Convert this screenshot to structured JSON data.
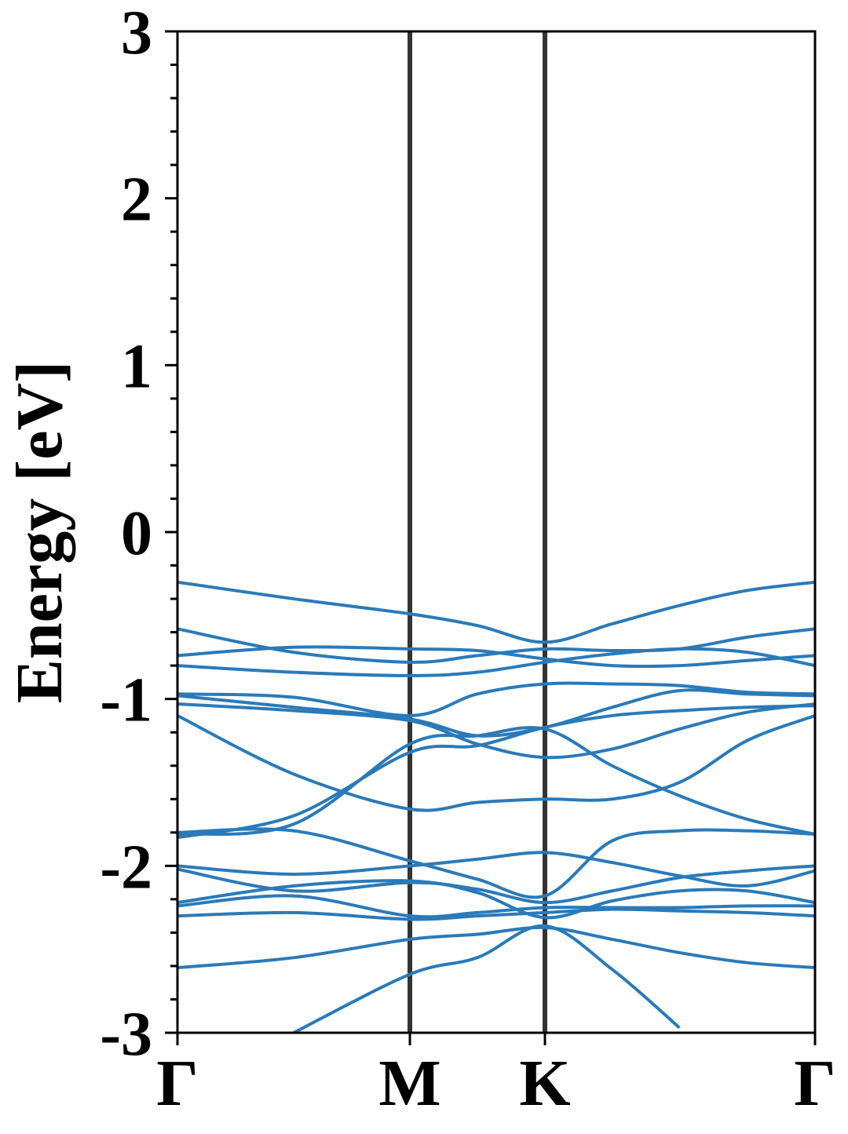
{
  "chart_data": {
    "type": "line",
    "y_label": "Energy [eV]",
    "color": "#2a7ab9",
    "kpoint_lines": true,
    "x": [
      0,
      0.5,
      1,
      1.29,
      1.581,
      1.87,
      2.16,
      2.45,
      2.743
    ],
    "xlim": [
      0,
      2.743
    ],
    "xticks": [
      {
        "value": 0,
        "label": "Γ"
      },
      {
        "value": 1,
        "label": "M"
      },
      {
        "value": 1.581,
        "label": "K"
      },
      {
        "value": 2.743,
        "label": "Γ"
      }
    ],
    "ylim": [
      -3,
      3
    ],
    "yticks": [
      -3,
      -2,
      -1,
      0,
      1,
      2,
      3
    ],
    "yminorticks": [
      -2.8,
      -2.6,
      -2.4,
      -2.2,
      -1.8,
      -1.6,
      -1.4,
      -1.2,
      -0.8,
      -0.6,
      -0.4,
      -0.2,
      0.2,
      0.4,
      0.6,
      0.8,
      1.2,
      1.4,
      1.6,
      1.8,
      2.2,
      2.4,
      2.6,
      2.8
    ],
    "series": [
      {
        "values": [
          -0.3,
          -0.4,
          -0.49,
          -0.56,
          -0.66,
          -0.55,
          -0.44,
          -0.35,
          -0.3
        ]
      },
      {
        "values": [
          -0.58,
          -0.72,
          -0.78,
          -0.74,
          -0.7,
          -0.71,
          -0.7,
          -0.63,
          -0.58
        ]
      },
      {
        "values": [
          -0.74,
          -0.69,
          -0.7,
          -0.71,
          -0.76,
          -0.8,
          -0.8,
          -0.77,
          -0.74
        ]
      },
      {
        "values": [
          -0.8,
          -0.84,
          -0.86,
          -0.84,
          -0.78,
          -0.73,
          -0.7,
          -0.72,
          -0.8
        ]
      },
      {
        "values": [
          -0.97,
          -0.99,
          -1.1,
          -0.97,
          -0.91,
          -0.91,
          -0.92,
          -0.96,
          -0.97
        ]
      },
      {
        "values": [
          -0.98,
          -1.05,
          -1.12,
          -1.22,
          -1.17,
          -1.05,
          -0.95,
          -0.97,
          -0.98
        ]
      },
      {
        "values": [
          -1.03,
          -1.07,
          -1.13,
          -1.27,
          -1.35,
          -1.3,
          -1.18,
          -1.08,
          -1.03
        ]
      },
      {
        "values": [
          -1.1,
          -1.45,
          -1.66,
          -1.62,
          -1.6,
          -1.6,
          -1.5,
          -1.25,
          -1.1
        ]
      },
      {
        "values": [
          -1.83,
          -1.7,
          -1.32,
          -1.28,
          -1.17,
          -1.1,
          -1.07,
          -1.05,
          -1.04
        ]
      },
      {
        "values": [
          -1.81,
          -1.75,
          -1.27,
          -1.22,
          -1.18,
          -1.4,
          -1.58,
          -1.72,
          -1.81
        ]
      },
      {
        "values": [
          -1.8,
          -1.79,
          -1.97,
          -2.08,
          -2.18,
          -1.85,
          -1.79,
          -1.79,
          -1.81
        ]
      },
      {
        "values": [
          -2.0,
          -2.05,
          -2.0,
          -1.96,
          -1.92,
          -1.98,
          -2.06,
          -2.12,
          -2.03
        ]
      },
      {
        "values": [
          -2.02,
          -2.15,
          -2.1,
          -2.14,
          -2.22,
          -2.15,
          -2.07,
          -2.03,
          -2.0
        ]
      },
      {
        "values": [
          -2.22,
          -2.12,
          -2.09,
          -2.16,
          -2.31,
          -2.21,
          -2.15,
          -2.15,
          -2.22
        ]
      },
      {
        "values": [
          -2.24,
          -2.18,
          -2.3,
          -2.28,
          -2.25,
          -2.25,
          -2.25,
          -2.24,
          -2.24
        ]
      },
      {
        "values": [
          -2.3,
          -2.28,
          -2.32,
          -2.3,
          -2.28,
          -2.26,
          -2.27,
          -2.28,
          -2.3
        ]
      },
      {
        "values": [
          -2.61,
          -2.55,
          -2.44,
          -2.41,
          -2.37,
          -2.44,
          -2.52,
          -2.58,
          -2.61
        ]
      },
      {
        "values": [
          null,
          -3.0,
          -2.65,
          -2.55,
          -2.36,
          -2.62,
          -2.97,
          null,
          null
        ]
      }
    ]
  }
}
